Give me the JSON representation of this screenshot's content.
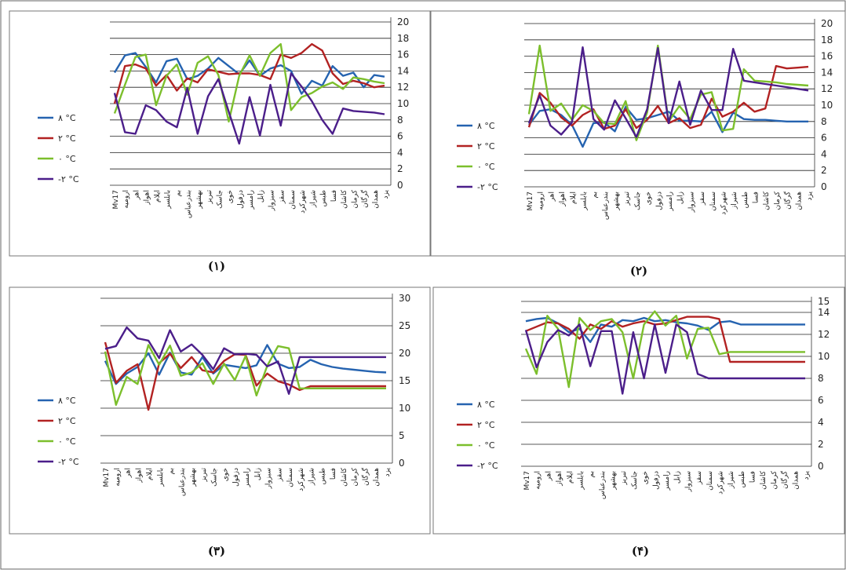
{
  "figure": {
    "captions": [
      "(۱)",
      "(۲)",
      "(۳)",
      "(۴)"
    ]
  },
  "categories": [
    "Mv17",
    "ارومیه",
    "اهر",
    "اهواز",
    "ایلام",
    "بابلسر",
    "بم",
    "بندرعباس",
    "بهشهر",
    "تبریز",
    "جاسک",
    "خوی",
    "دزفول",
    "رامسر",
    "زابل",
    "سبزوار",
    "سقز",
    "سمنان",
    "شهرکرد",
    "شیراز",
    "طبس",
    "فسا",
    "کاشان",
    "کرمان",
    "گرگان",
    "همدان",
    "یزد"
  ],
  "colors": {
    "s8": "#2563b0",
    "s2": "#b22222",
    "s0": "#7cbf2c",
    "sm2": "#4b1e8a"
  },
  "chart_data": [
    {
      "type": "line",
      "ylim": [
        0,
        20
      ],
      "yticks": [
        0,
        2,
        4,
        6,
        8,
        10,
        12,
        14,
        16,
        18,
        20
      ],
      "legend_position": "left",
      "series": [
        {
          "name": "۸ °C",
          "color": "#2563b0",
          "values": [
            13.8,
            15.9,
            16.2,
            14.5,
            12.6,
            15.2,
            15.5,
            13.0,
            13.4,
            14.3,
            15.6,
            14.6,
            13.6,
            15.3,
            13.4,
            14.3,
            14.7,
            14.0,
            11.2,
            12.8,
            12.2,
            14.6,
            13.4,
            13.8,
            12.0,
            13.5,
            13.3
          ]
        },
        {
          "name": "۲ °C",
          "color": "#b22222",
          "values": [
            10.0,
            14.6,
            14.8,
            14.3,
            12.2,
            13.5,
            11.6,
            13.1,
            12.6,
            14.2,
            13.9,
            13.6,
            13.7,
            13.7,
            13.5,
            13.0,
            16.0,
            15.6,
            16.2,
            17.3,
            16.5,
            13.7,
            12.4,
            12.8,
            12.5,
            12.0,
            12.2
          ]
        },
        {
          "name": "۰ °C",
          "color": "#7cbf2c",
          "values": [
            8.8,
            12.3,
            15.7,
            16.0,
            9.8,
            13.4,
            14.8,
            11.1,
            15.0,
            15.8,
            13.5,
            7.8,
            13.4,
            15.9,
            13.4,
            16.2,
            17.3,
            9.2,
            10.8,
            11.3,
            12.1,
            12.6,
            11.8,
            13.2,
            13.0,
            12.7,
            12.5
          ]
        },
        {
          "name": "-۲ °C",
          "color": "#4b1e8a",
          "values": [
            11.3,
            6.5,
            6.3,
            9.8,
            9.2,
            7.8,
            7.1,
            11.9,
            6.3,
            10.9,
            13.0,
            9.0,
            5.1,
            10.8,
            6.1,
            12.3,
            7.3,
            13.7,
            12.1,
            10.3,
            8.0,
            6.3,
            9.4,
            9.1,
            9.0,
            8.9,
            8.7
          ]
        }
      ]
    },
    {
      "type": "line",
      "ylim": [
        0,
        20
      ],
      "yticks": [
        0,
        2,
        4,
        6,
        8,
        10,
        12,
        14,
        16,
        18,
        20
      ],
      "legend_position": "left",
      "series": [
        {
          "name": "۸ °C",
          "color": "#2563b0",
          "values": [
            7.6,
            9.3,
            9.5,
            8.8,
            7.6,
            4.9,
            7.8,
            7.9,
            6.8,
            9.8,
            8.2,
            8.4,
            8.8,
            9.2,
            8.1,
            8.1,
            8.0,
            9.2,
            6.7,
            9.1,
            8.3,
            8.2,
            8.2,
            8.1,
            8.0,
            8.0,
            8.0
          ]
        },
        {
          "name": "۲ °C",
          "color": "#b22222",
          "values": [
            7.3,
            11.5,
            10.3,
            8.5,
            7.5,
            8.8,
            9.5,
            7.1,
            7.5,
            9.5,
            7.2,
            8.2,
            9.9,
            7.8,
            8.4,
            7.2,
            7.6,
            10.8,
            8.6,
            9.2,
            10.3,
            9.2,
            9.6,
            14.8,
            14.5,
            14.6,
            14.7
          ]
        },
        {
          "name": "۰ °C",
          "color": "#7cbf2c",
          "values": [
            8.9,
            17.3,
            9.3,
            10.2,
            8.2,
            10.0,
            9.3,
            7.8,
            7.7,
            10.5,
            5.7,
            9.1,
            17.3,
            8.0,
            9.9,
            8.3,
            11.3,
            11.6,
            6.9,
            7.1,
            14.4,
            13.0,
            12.9,
            12.8,
            12.6,
            12.5,
            12.4
          ]
        },
        {
          "name": "-۲ °C",
          "color": "#4b1e8a",
          "values": [
            7.8,
            11.2,
            7.5,
            6.4,
            7.9,
            17.1,
            8.3,
            7.0,
            10.6,
            8.4,
            6.1,
            9.5,
            17.0,
            7.8,
            12.9,
            7.6,
            11.8,
            9.4,
            9.4,
            16.9,
            13.0,
            12.8,
            12.6,
            12.4,
            12.2,
            12.0,
            11.8
          ]
        }
      ]
    },
    {
      "type": "line",
      "ylim": [
        0,
        30
      ],
      "yticks": [
        0,
        5,
        10,
        15,
        20,
        25,
        30
      ],
      "legend_position": "left",
      "series": [
        {
          "name": "۸ °C",
          "color": "#2563b0",
          "values": [
            18.6,
            14.4,
            16.3,
            17.5,
            20.0,
            16.1,
            20.1,
            16.5,
            16.1,
            19.3,
            16.3,
            17.9,
            17.6,
            17.3,
            17.8,
            21.5,
            18.1,
            17.3,
            17.5,
            18.8,
            18.0,
            17.5,
            17.2,
            17.0,
            16.8,
            16.6,
            16.5
          ]
        },
        {
          "name": "۲ °C",
          "color": "#b22222",
          "values": [
            22.0,
            14.6,
            16.8,
            18.0,
            9.7,
            18.2,
            19.9,
            17.3,
            19.3,
            16.9,
            16.5,
            18.6,
            19.8,
            19.7,
            14.1,
            16.3,
            14.9,
            14.3,
            13.3,
            14.0,
            14.0,
            14.0,
            14.0,
            14.0,
            14.0,
            14.0,
            14.0
          ]
        },
        {
          "name": "۰ °C",
          "color": "#7cbf2c",
          "values": [
            20.3,
            10.6,
            15.7,
            14.4,
            21.5,
            17.9,
            21.4,
            15.9,
            16.5,
            18.2,
            14.4,
            18.1,
            15.1,
            19.5,
            12.3,
            17.7,
            21.3,
            20.9,
            13.6,
            13.6,
            13.6,
            13.6,
            13.6,
            13.6,
            13.6,
            13.6,
            13.6
          ]
        },
        {
          "name": "-۲ °C",
          "color": "#4b1e8a",
          "values": [
            20.8,
            21.3,
            24.7,
            22.7,
            22.3,
            19.1,
            24.2,
            20.3,
            21.6,
            19.7,
            17.1,
            20.9,
            19.8,
            19.9,
            19.7,
            17.6,
            18.5,
            12.6,
            19.3,
            19.3,
            19.3,
            19.3,
            19.3,
            19.3,
            19.3,
            19.3,
            19.3
          ]
        }
      ]
    },
    {
      "type": "line",
      "ylim": [
        0,
        15
      ],
      "yticks": [
        0,
        2,
        4,
        6,
        8,
        10,
        12,
        14,
        15
      ],
      "legend_position": "left",
      "series": [
        {
          "name": "۸ °C",
          "color": "#2563b0",
          "values": [
            13.2,
            13.4,
            13.5,
            13.0,
            12.2,
            12.5,
            11.3,
            12.9,
            12.7,
            13.3,
            13.2,
            13.5,
            13.2,
            13.3,
            13.1,
            13.0,
            12.8,
            12.4,
            13.1,
            13.2,
            12.9,
            12.9,
            12.9,
            12.9,
            12.9,
            12.9,
            12.9
          ]
        },
        {
          "name": "۲ °C",
          "color": "#b22222",
          "values": [
            12.3,
            12.7,
            13.1,
            13.0,
            12.5,
            11.6,
            12.9,
            12.5,
            13.2,
            12.7,
            13.0,
            13.2,
            12.9,
            13.0,
            13.3,
            13.6,
            13.6,
            13.6,
            13.4,
            9.5,
            9.5,
            9.5,
            9.5,
            9.5,
            9.5,
            9.5,
            9.5
          ]
        },
        {
          "name": "۰ °C",
          "color": "#7cbf2c",
          "values": [
            10.7,
            8.4,
            13.7,
            12.5,
            7.2,
            13.5,
            12.4,
            13.2,
            13.4,
            12.2,
            8.0,
            12.9,
            14.1,
            12.8,
            13.7,
            9.8,
            12.5,
            12.6,
            10.2,
            10.4,
            10.4,
            10.4,
            10.4,
            10.4,
            10.4,
            10.4,
            10.4
          ]
        },
        {
          "name": "-۲ °C",
          "color": "#4b1e8a",
          "values": [
            12.4,
            9.0,
            11.3,
            12.4,
            11.9,
            12.9,
            9.1,
            12.3,
            12.3,
            6.6,
            12.2,
            8.0,
            12.9,
            8.5,
            12.9,
            12.2,
            8.4,
            8.0,
            8.0,
            8.0,
            8.0,
            8.0,
            8.0,
            8.0,
            8.0,
            8.0,
            8.0
          ]
        }
      ]
    }
  ]
}
